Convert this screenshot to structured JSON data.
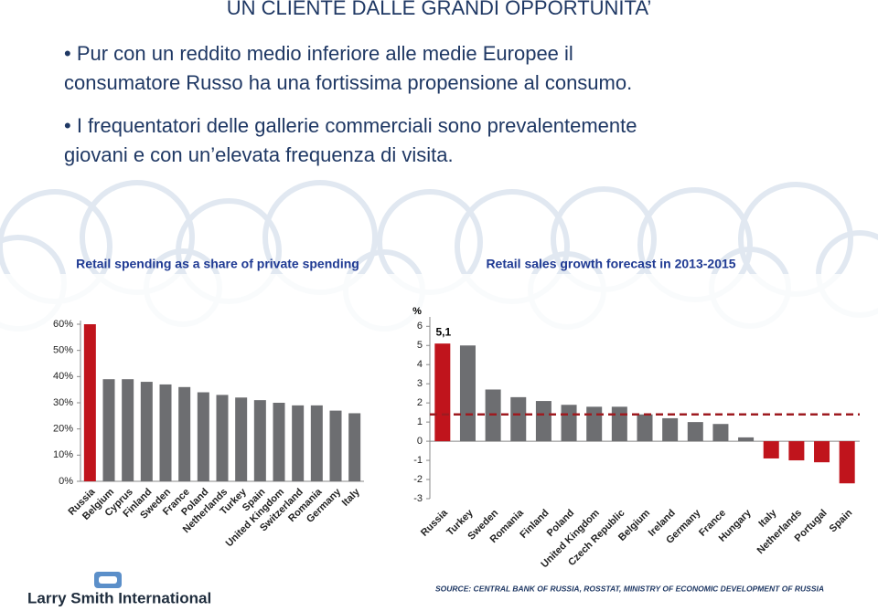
{
  "header": {
    "title": "UN CLIENTE DALLE GRANDI OPPORTUNITA’"
  },
  "bullets": [
    [
      "Pur con un reddito medio inferiore alle medie Europee il",
      "consumatore Russo ha una fortissima propensione al consumo."
    ],
    [
      "I frequentatori delle gallerie commerciali sono prevalentemente",
      "giovani e con un’elevata frequenza di visita."
    ]
  ],
  "chart_data": [
    {
      "type": "bar",
      "title": "Retail spending as a share of private spending",
      "categories": [
        "Russia",
        "Belgium",
        "Cyprus",
        "Finland",
        "Sweden",
        "France",
        "Poland",
        "Netherlands",
        "Turkey",
        "Spain",
        "United Kingdom",
        "Switzerland",
        "Romania",
        "Germany",
        "Italy"
      ],
      "values": [
        60,
        39,
        39,
        38,
        37,
        36,
        34,
        33,
        32,
        31,
        30,
        29,
        29,
        27,
        26
      ],
      "colors": [
        "#c0141c",
        "#6d6e71",
        "#6d6e71",
        "#6d6e71",
        "#6d6e71",
        "#6d6e71",
        "#6d6e71",
        "#6d6e71",
        "#6d6e71",
        "#6d6e71",
        "#6d6e71",
        "#6d6e71",
        "#6d6e71",
        "#6d6e71",
        "#6d6e71"
      ],
      "ylim": [
        0,
        60
      ],
      "yticks": [
        {
          "value": 0,
          "label": "0%"
        },
        {
          "value": 10,
          "label": "10%"
        },
        {
          "value": 20,
          "label": "20%"
        },
        {
          "value": 30,
          "label": "30%"
        },
        {
          "value": 40,
          "label": "40%"
        },
        {
          "value": 50,
          "label": "50%"
        },
        {
          "value": 60,
          "label": "60%"
        }
      ]
    },
    {
      "type": "bar",
      "title": "Retail sales growth forecast in 2013-2015",
      "y_label": "%",
      "categories": [
        "Russia",
        "Turkey",
        "Sweden",
        "Romania",
        "Finland",
        "Poland",
        "United Kingdom",
        "Czech Republic",
        "Belgium",
        "Ireland",
        "Germany",
        "France",
        "Hungary",
        "Italy",
        "Netherlands",
        "Portugal",
        "Spain"
      ],
      "values": [
        5.1,
        5.0,
        2.7,
        2.3,
        2.1,
        1.9,
        1.8,
        1.8,
        1.4,
        1.2,
        1.0,
        0.9,
        0.2,
        -0.9,
        -1.0,
        -1.1,
        -2.2
      ],
      "value_labels": [
        "5,1",
        null,
        null,
        null,
        null,
        null,
        null,
        null,
        null,
        null,
        null,
        null,
        null,
        null,
        null,
        null,
        null
      ],
      "colors": [
        "#c0141c",
        "#6d6e71",
        "#6d6e71",
        "#6d6e71",
        "#6d6e71",
        "#6d6e71",
        "#6d6e71",
        "#6d6e71",
        "#6d6e71",
        "#6d6e71",
        "#6d6e71",
        "#6d6e71",
        "#6d6e71",
        "#c0141c",
        "#c0141c",
        "#c0141c",
        "#c0141c"
      ],
      "ylim": [
        -3,
        6.3
      ],
      "yticks": [
        -3,
        -2,
        -1,
        0,
        1,
        2,
        3,
        4,
        5,
        6
      ],
      "reference_line": {
        "value": 1.4,
        "color": "#9e1b20"
      }
    }
  ],
  "footer": {
    "logo": "Larry Smith International",
    "source": "SOURCE: CENTRAL BANK OF RUSSIA, ROSSTAT, MINISTRY OF ECONOMIC DEVELOPMENT OF RUSSIA"
  }
}
